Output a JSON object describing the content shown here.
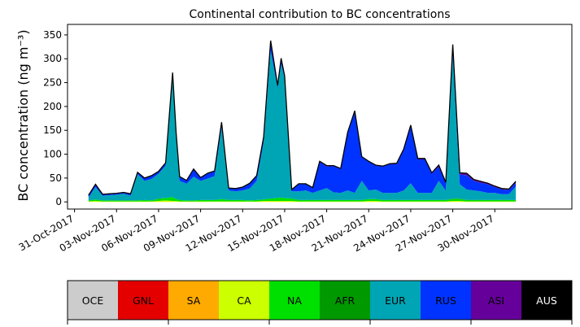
{
  "chart_data": {
    "type": "area",
    "stacked": true,
    "title": "Continental contribution to BC concentrations",
    "ylabel": "BC concentration (ng m⁻³)",
    "xlabel": "",
    "ylim": [
      -15,
      372
    ],
    "yticks": [
      0,
      50,
      100,
      150,
      200,
      250,
      300,
      350
    ],
    "xlim": [
      "2017-10-30T12:00",
      "2017-12-05T12:00"
    ],
    "xticks": [
      "2017-10-31",
      "2017-11-03",
      "2017-11-06",
      "2017-11-09",
      "2017-11-12",
      "2017-11-15",
      "2017-11-18",
      "2017-11-21",
      "2017-11-24",
      "2017-11-27",
      "2017-11-30"
    ],
    "xtick_labels": [
      "31-Oct-2017",
      "03-Nov-2017",
      "06-Nov-2017",
      "09-Nov-2017",
      "12-Nov-2017",
      "15-Nov-2017",
      "18-Nov-2017",
      "21-Nov-2017",
      "24-Nov-2017",
      "27-Nov-2017",
      "30-Nov-2017"
    ],
    "grid": false,
    "legend_position": "bottom",
    "x": [
      "2017-11-01T00:00",
      "2017-11-01T12:00",
      "2017-11-02T00:00",
      "2017-11-02T12:00",
      "2017-11-03T00:00",
      "2017-11-03T12:00",
      "2017-11-04T00:00",
      "2017-11-04T12:00",
      "2017-11-05T00:00",
      "2017-11-05T12:00",
      "2017-11-06T00:00",
      "2017-11-06T12:00",
      "2017-11-07T00:00",
      "2017-11-07T06:00",
      "2017-11-07T12:00",
      "2017-11-08T00:00",
      "2017-11-08T12:00",
      "2017-11-09T00:00",
      "2017-11-09T12:00",
      "2017-11-10T00:00",
      "2017-11-10T12:00",
      "2017-11-11T00:00",
      "2017-11-11T12:00",
      "2017-11-12T00:00",
      "2017-11-12T12:00",
      "2017-11-13T00:00",
      "2017-11-13T12:00",
      "2017-11-14T00:00",
      "2017-11-14T12:00",
      "2017-11-14T18:00",
      "2017-11-15T00:00",
      "2017-11-15T12:00",
      "2017-11-16T00:00",
      "2017-11-16T12:00",
      "2017-11-17T00:00",
      "2017-11-17T12:00",
      "2017-11-18T00:00",
      "2017-11-18T12:00",
      "2017-11-19T00:00",
      "2017-11-19T12:00",
      "2017-11-20T00:00",
      "2017-11-20T12:00",
      "2017-11-21T00:00",
      "2017-11-21T12:00",
      "2017-11-22T00:00",
      "2017-11-22T12:00",
      "2017-11-23T00:00",
      "2017-11-23T12:00",
      "2017-11-24T00:00",
      "2017-11-24T12:00",
      "2017-11-25T00:00",
      "2017-11-25T12:00",
      "2017-11-26T00:00",
      "2017-11-26T12:00",
      "2017-11-27T00:00",
      "2017-11-27T12:00",
      "2017-11-28T00:00",
      "2017-11-28T12:00",
      "2017-11-29T00:00",
      "2017-11-29T12:00",
      "2017-11-30T00:00",
      "2017-11-30T12:00",
      "2017-12-01T00:00",
      "2017-12-01T12:00"
    ],
    "series": [
      {
        "name": "OCE",
        "color": "#cccccc",
        "values": [
          0,
          0,
          0,
          0,
          0,
          0,
          0,
          0,
          0,
          0,
          0,
          0,
          0,
          0,
          0,
          0,
          0,
          0,
          0,
          0,
          0,
          0,
          0,
          0,
          0,
          0,
          0,
          0,
          0,
          0,
          0,
          0,
          0,
          0,
          0,
          0,
          0,
          0,
          0,
          0,
          0,
          0,
          0,
          0,
          0,
          0,
          0,
          0,
          0,
          0,
          0,
          0,
          0,
          0,
          0,
          0,
          0,
          0,
          0,
          0,
          0,
          0,
          0,
          0
        ]
      },
      {
        "name": "GNL",
        "color": "#e50000",
        "values": [
          0,
          0,
          0,
          0,
          0,
          0,
          0,
          0,
          0,
          0,
          0,
          0,
          0,
          0,
          0,
          0,
          0,
          0,
          0,
          0,
          0,
          0,
          0,
          0,
          0,
          0,
          0,
          0,
          0,
          0,
          0,
          0,
          0,
          0,
          0,
          0,
          0,
          0,
          0,
          0,
          0,
          0,
          0,
          0,
          0,
          0,
          0,
          0,
          0,
          0,
          0,
          0,
          0,
          0,
          0,
          0,
          0,
          0,
          0,
          0,
          0,
          0,
          0,
          0
        ]
      },
      {
        "name": "SA",
        "color": "#ffaa00",
        "values": [
          0,
          0,
          0,
          0,
          0,
          0,
          0,
          0,
          0,
          0,
          0,
          0,
          0,
          0,
          0,
          0,
          0,
          0,
          0,
          0,
          0,
          0,
          0,
          0,
          0,
          0,
          0,
          0,
          0,
          0,
          0,
          0,
          0,
          0,
          0,
          0,
          0,
          0,
          0,
          0,
          0,
          0,
          0,
          0,
          0,
          0,
          0,
          0,
          0,
          0,
          0,
          0,
          0,
          0,
          0,
          0,
          0,
          0,
          0,
          0,
          0,
          0,
          0,
          0
        ]
      },
      {
        "name": "CA",
        "color": "#ccff00",
        "values": [
          1,
          2,
          1,
          1,
          1,
          1,
          1,
          1,
          1,
          1,
          2,
          3,
          2,
          2,
          1,
          1,
          1,
          1,
          1,
          1,
          1,
          1,
          1,
          1,
          1,
          1,
          2,
          2,
          2,
          2,
          2,
          2,
          1,
          1,
          1,
          1,
          1,
          1,
          1,
          1,
          1,
          1,
          2,
          2,
          1,
          1,
          1,
          1,
          1,
          1,
          1,
          1,
          1,
          1,
          2,
          2,
          1,
          1,
          1,
          1,
          1,
          1,
          1,
          1
        ]
      },
      {
        "name": "NA",
        "color": "#00e000",
        "values": [
          2,
          3,
          2,
          2,
          2,
          2,
          2,
          2,
          3,
          2,
          4,
          5,
          8,
          4,
          3,
          2,
          2,
          3,
          3,
          3,
          5,
          3,
          3,
          3,
          2,
          3,
          3,
          5,
          6,
          7,
          6,
          5,
          3,
          3,
          3,
          3,
          3,
          3,
          3,
          3,
          3,
          3,
          4,
          4,
          3,
          3,
          3,
          3,
          3,
          3,
          3,
          3,
          3,
          3,
          4,
          4,
          3,
          3,
          3,
          3,
          3,
          3,
          3,
          3
        ]
      },
      {
        "name": "AFR",
        "color": "#009900",
        "values": [
          0,
          0,
          0,
          0,
          0,
          0,
          0,
          0,
          0,
          0,
          1,
          0,
          0,
          0,
          0,
          0,
          0,
          0,
          0,
          0,
          0,
          0,
          0,
          0,
          0,
          0,
          0,
          0,
          0,
          0,
          0,
          0,
          0,
          0,
          0,
          0,
          0,
          0,
          0,
          0,
          0,
          0,
          0,
          0,
          0,
          0,
          0,
          0,
          0,
          0,
          0,
          0,
          0,
          0,
          1,
          1,
          0,
          0,
          0,
          0,
          0,
          0,
          0,
          0
        ]
      },
      {
        "name": "EUR",
        "color": "#00a5b5",
        "values": [
          6,
          26,
          10,
          11,
          12,
          14,
          10,
          55,
          40,
          45,
          52,
          68,
          252,
          130,
          40,
          35,
          50,
          40,
          45,
          50,
          150,
          20,
          18,
          20,
          25,
          40,
          120,
          310,
          230,
          280,
          250,
          15,
          18,
          20,
          15,
          20,
          25,
          16,
          15,
          20,
          15,
          40,
          18,
          20,
          15,
          15,
          15,
          20,
          35,
          15,
          15,
          15,
          40,
          20,
          300,
          30,
          22,
          20,
          18,
          15,
          15,
          12,
          12,
          28
        ]
      },
      {
        "name": "RUS",
        "color": "#0033ff",
        "values": [
          4,
          5,
          2,
          2,
          2,
          2,
          3,
          3,
          5,
          6,
          4,
          5,
          8,
          8,
          8,
          6,
          15,
          6,
          10,
          10,
          10,
          4,
          5,
          6,
          10,
          10,
          10,
          20,
          5,
          10,
          5,
          3,
          15,
          13,
          10,
          60,
          45,
          55,
          50,
          120,
          170,
          50,
          60,
          50,
          55,
          60,
          60,
          85,
          120,
          70,
          70,
          40,
          30,
          15,
          20,
          20,
          30,
          20,
          18,
          18,
          12,
          10,
          9,
          8
        ]
      },
      {
        "name": "ASI",
        "color": "#66009b",
        "values": [
          1,
          1,
          1,
          1,
          1,
          1,
          1,
          1,
          1,
          1,
          1,
          1,
          1,
          1,
          1,
          1,
          1,
          1,
          1,
          1,
          1,
          1,
          1,
          1,
          1,
          1,
          1,
          1,
          1,
          2,
          1,
          1,
          1,
          1,
          1,
          1,
          2,
          1,
          1,
          2,
          2,
          1,
          1,
          1,
          1,
          1,
          2,
          2,
          2,
          2,
          2,
          2,
          3,
          2,
          3,
          4,
          4,
          3,
          3,
          2,
          2,
          2,
          2,
          3
        ]
      },
      {
        "name": "AUS",
        "color": "#000000",
        "values": [
          0,
          0,
          0,
          0,
          0,
          0,
          0,
          0,
          0,
          0,
          0,
          0,
          0,
          0,
          0,
          0,
          0,
          0,
          0,
          0,
          0,
          0,
          0,
          0,
          0,
          0,
          0,
          0,
          0,
          0,
          0,
          0,
          0,
          0,
          0,
          0,
          0,
          0,
          0,
          0,
          0,
          0,
          0,
          0,
          0,
          0,
          0,
          0,
          0,
          0,
          0,
          0,
          0,
          0,
          0,
          0,
          0,
          0,
          0,
          0,
          0,
          0,
          0,
          0
        ]
      }
    ],
    "legend": [
      {
        "label": "OCE",
        "color": "#cccccc",
        "text_color": "#000000"
      },
      {
        "label": "GNL",
        "color": "#e50000",
        "text_color": "#000000"
      },
      {
        "label": "SA",
        "color": "#ffaa00",
        "text_color": "#000000"
      },
      {
        "label": "CA",
        "color": "#ccff00",
        "text_color": "#000000"
      },
      {
        "label": "NA",
        "color": "#00e000",
        "text_color": "#000000"
      },
      {
        "label": "AFR",
        "color": "#009900",
        "text_color": "#000000"
      },
      {
        "label": "EUR",
        "color": "#00a5b5",
        "text_color": "#000000"
      },
      {
        "label": "RUS",
        "color": "#0033ff",
        "text_color": "#000000"
      },
      {
        "label": "ASI",
        "color": "#66009b",
        "text_color": "#000000"
      },
      {
        "label": "AUS",
        "color": "#000000",
        "text_color": "#ffffff"
      }
    ]
  }
}
